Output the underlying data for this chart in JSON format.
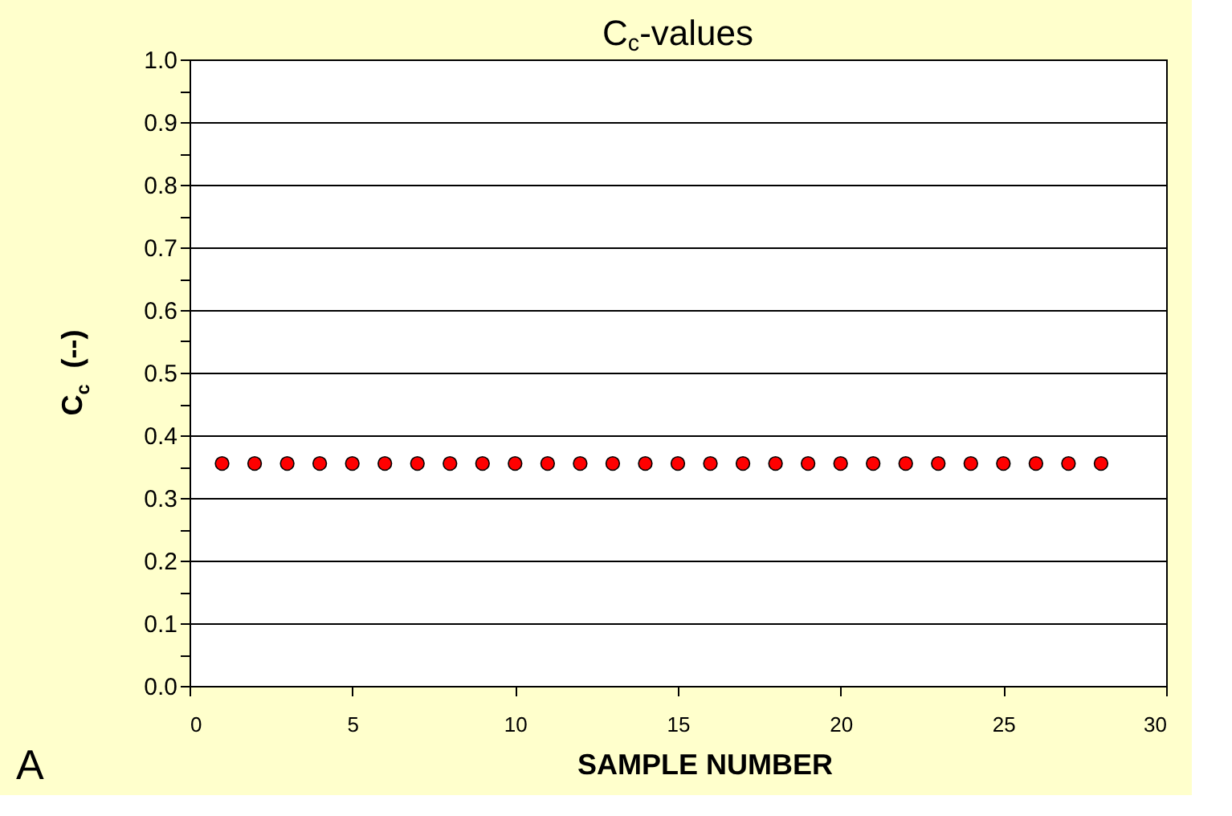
{
  "chart_data": {
    "type": "scatter",
    "title": "C$_{c}$-values",
    "xlabel": "SAMPLE NUMBER",
    "ylabel": "C$_{c}$  (--)",
    "x": [
      1,
      2,
      3,
      4,
      5,
      6,
      7,
      8,
      9,
      10,
      11,
      12,
      13,
      14,
      15,
      16,
      17,
      18,
      19,
      20,
      21,
      22,
      23,
      24,
      25,
      26,
      27,
      28
    ],
    "series": [
      {
        "color": "#ff0000",
        "values": [
          0.355,
          0.355,
          0.355,
          0.355,
          0.355,
          0.355,
          0.355,
          0.355,
          0.355,
          0.355,
          0.355,
          0.355,
          0.355,
          0.355,
          0.355,
          0.355,
          0.355,
          0.355,
          0.355,
          0.355,
          0.355,
          0.355,
          0.355,
          0.355,
          0.355,
          0.355,
          0.355,
          0.355
        ]
      }
    ],
    "xlim": [
      0,
      30
    ],
    "xticks": [
      0,
      5,
      10,
      15,
      20,
      25,
      30
    ],
    "ylim": [
      0,
      1
    ],
    "yticks": [
      {
        "value": 0,
        "label": "0.0"
      },
      {
        "value": 0.05,
        "label": null
      },
      0.1,
      {
        "value": 0.15,
        "label": null
      },
      0.2,
      {
        "value": 0.25,
        "label": null
      },
      0.3,
      {
        "value": 0.35,
        "label": null
      },
      0.4,
      {
        "value": 0.45,
        "label": null
      },
      0.5,
      {
        "value": 0.55,
        "label": null
      },
      0.6,
      {
        "value": 0.65,
        "label": null
      },
      0.7,
      {
        "value": 0.75,
        "label": null
      },
      0.8,
      {
        "value": 0.85,
        "label": null
      },
      0.9,
      {
        "value": 0.95,
        "label": null
      },
      {
        "value": 1,
        "label": "1.0"
      }
    ],
    "grid": "y",
    "marker": "circle",
    "legend": false,
    "annotations": [
      "A"
    ]
  }
}
